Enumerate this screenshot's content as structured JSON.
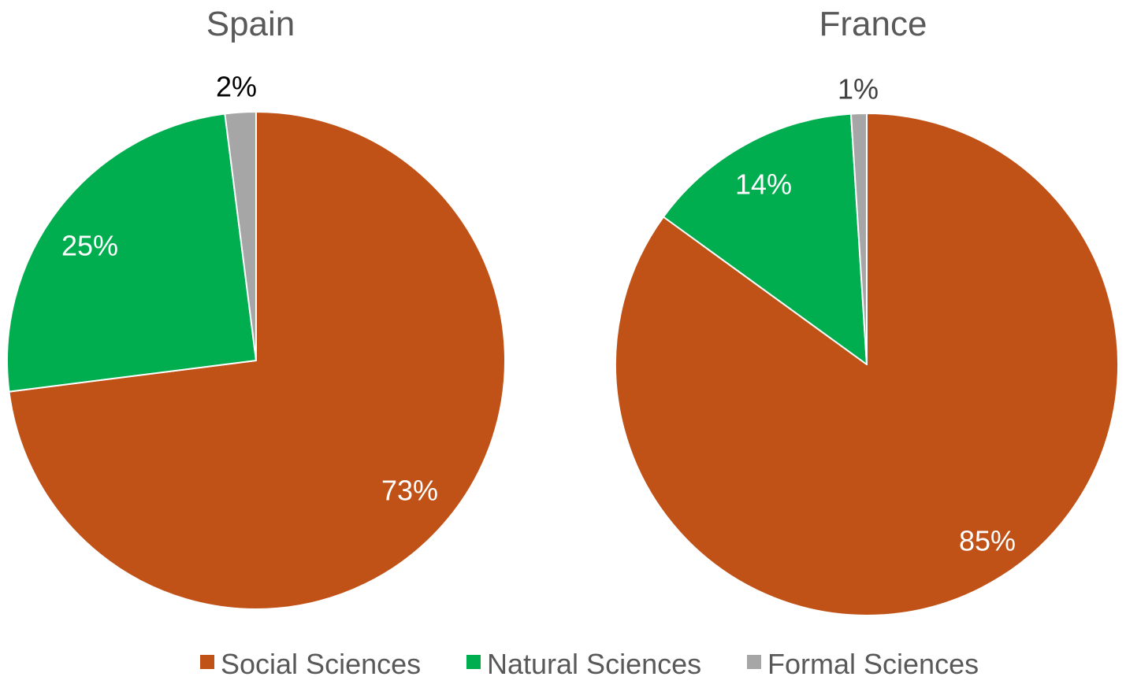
{
  "chart_data": [
    {
      "type": "pie",
      "title": "Spain",
      "categories": [
        "Social Sciences",
        "Natural Sciences",
        "Formal Sciences"
      ],
      "values": [
        73,
        25,
        2
      ],
      "labels": [
        "73%",
        "25%",
        "2%"
      ],
      "colors": [
        "#C05117",
        "#00AE4F",
        "#A6A6A6"
      ],
      "start": "12 o'clock, clockwise"
    },
    {
      "type": "pie",
      "title": "France",
      "categories": [
        "Social Sciences",
        "Natural Sciences",
        "Formal Sciences"
      ],
      "values": [
        85,
        14,
        1
      ],
      "labels": [
        "85%",
        "14%",
        "1%"
      ],
      "colors": [
        "#C05117",
        "#00AE4F",
        "#A6A6A6"
      ],
      "start": "12 o'clock, clockwise"
    }
  ],
  "legend": {
    "placement": "bottom",
    "items": [
      {
        "label": "Social Sciences",
        "color": "#C05117"
      },
      {
        "label": "Natural Sciences",
        "color": "#00AE4F"
      },
      {
        "label": "Formal Sciences",
        "color": "#A6A6A6"
      }
    ]
  }
}
